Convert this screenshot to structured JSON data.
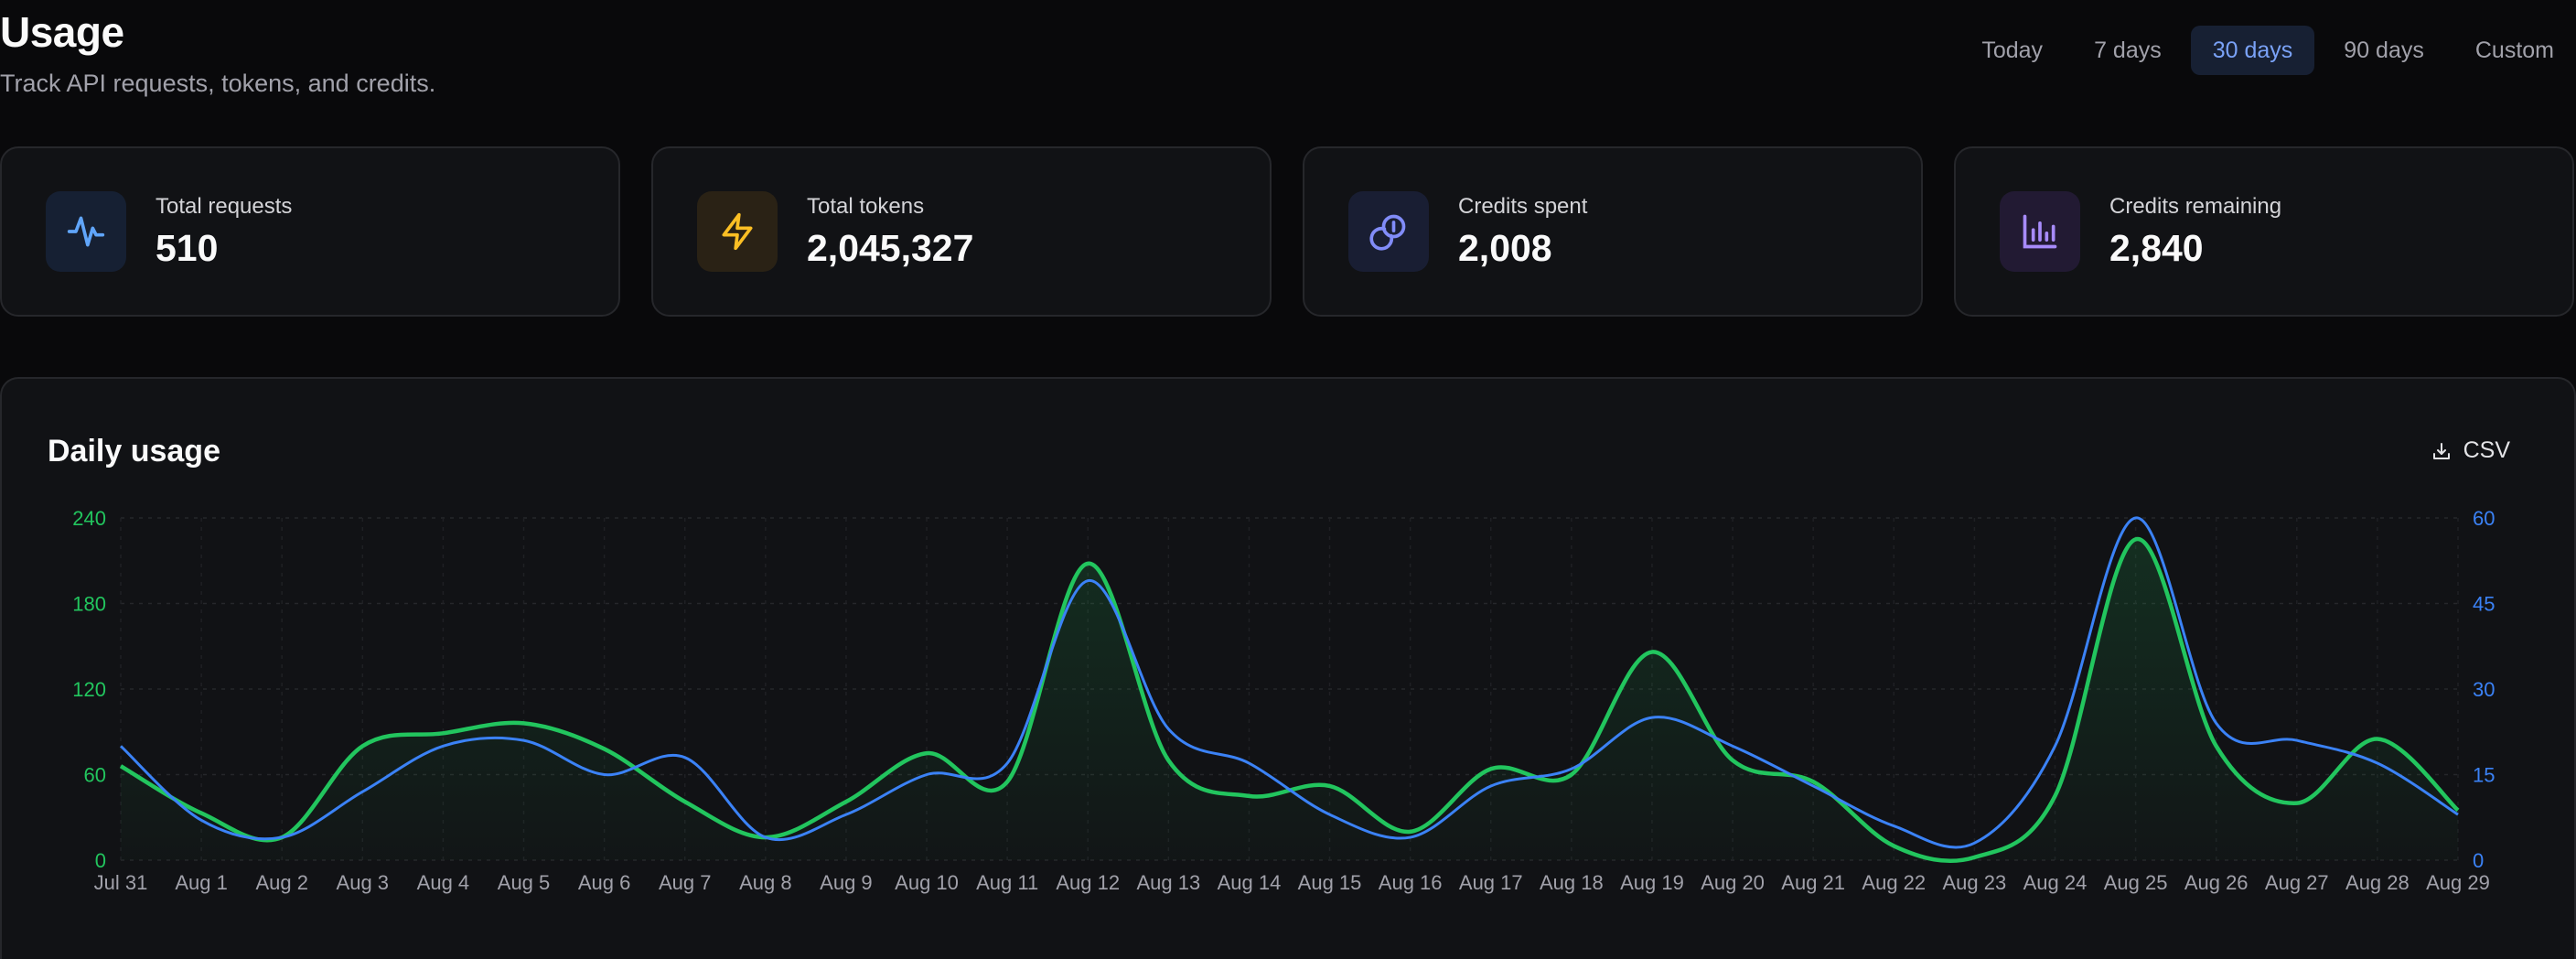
{
  "header": {
    "title": "Usage",
    "subtitle": "Track API requests, tokens, and credits."
  },
  "range_tabs": [
    {
      "label": "Today",
      "active": false
    },
    {
      "label": "7 days",
      "active": false
    },
    {
      "label": "30 days",
      "active": true
    },
    {
      "label": "90 days",
      "active": false
    },
    {
      "label": "Custom",
      "active": false
    }
  ],
  "stats": [
    {
      "label": "Total requests",
      "value": "510",
      "icon": "activity-icon",
      "color": "#60a5fa",
      "bg": "#162033"
    },
    {
      "label": "Total tokens",
      "value": "2,045,327",
      "icon": "lightning-icon",
      "color": "#fbbf24",
      "bg": "#2a2215"
    },
    {
      "label": "Credits spent",
      "value": "2,008",
      "icon": "coins-icon",
      "color": "#818cf8",
      "bg": "#191e33"
    },
    {
      "label": "Credits remaining",
      "value": "2,840",
      "icon": "bar-chart-icon",
      "color": "#a78bfa",
      "bg": "#221a33"
    }
  ],
  "chart_section": {
    "title": "Daily usage",
    "csv_label": "CSV"
  },
  "chart_data": {
    "type": "line",
    "title": "Daily usage",
    "categories": [
      "Jul 31",
      "Aug 1",
      "Aug 2",
      "Aug 3",
      "Aug 4",
      "Aug 5",
      "Aug 6",
      "Aug 7",
      "Aug 8",
      "Aug 9",
      "Aug 10",
      "Aug 11",
      "Aug 12",
      "Aug 13",
      "Aug 14",
      "Aug 15",
      "Aug 16",
      "Aug 17",
      "Aug 18",
      "Aug 19",
      "Aug 20",
      "Aug 21",
      "Aug 22",
      "Aug 23",
      "Aug 24",
      "Aug 25",
      "Aug 26",
      "Aug 27",
      "Aug 28",
      "Aug 29"
    ],
    "series": [
      {
        "axis": "left",
        "color": "#22c55e",
        "area": true,
        "values": [
          66,
          33,
          16,
          80,
          89,
          96,
          78,
          41,
          16,
          41,
          75,
          55,
          208,
          70,
          45,
          52,
          20,
          64,
          60,
          146,
          70,
          55,
          10,
          2,
          45,
          225,
          80,
          40,
          85,
          35
        ]
      },
      {
        "axis": "right",
        "color": "#3b82f6",
        "area": false,
        "values": [
          20,
          7,
          4,
          12,
          20,
          21,
          15,
          18,
          4,
          8,
          15,
          17,
          49,
          23,
          17,
          8,
          4,
          13,
          16,
          25,
          20,
          13,
          6,
          3,
          20,
          60,
          24,
          21,
          17,
          8
        ]
      }
    ],
    "y_left": {
      "min": 0,
      "max": 240,
      "ticks": [
        "0",
        "60",
        "120",
        "180",
        "240"
      ],
      "color": "#22c55e"
    },
    "y_right": {
      "min": 0,
      "max": 60,
      "ticks": [
        "0",
        "15",
        "30",
        "45",
        "60"
      ],
      "color": "#3b82f6"
    },
    "grid": true
  }
}
